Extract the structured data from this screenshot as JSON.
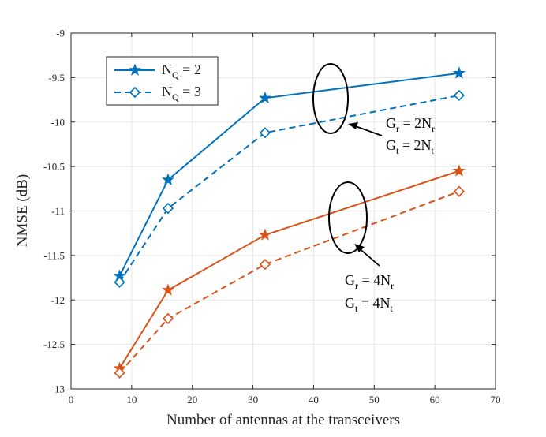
{
  "chart_data": {
    "type": "line",
    "title": "",
    "xlabel": "Number of antennas at the transceivers",
    "ylabel": "NMSE (dB)",
    "xlim": [
      0,
      70
    ],
    "ylim": [
      -13,
      -9
    ],
    "xticks": [
      0,
      10,
      20,
      30,
      40,
      50,
      60,
      70
    ],
    "yticks": [
      -13,
      -12.5,
      -12,
      -11.5,
      -11,
      -10.5,
      -10,
      -9.5,
      -9
    ],
    "xtick_labels": [
      "0",
      "10",
      "20",
      "30",
      "40",
      "50",
      "60",
      "70"
    ],
    "ytick_labels": [
      "-13",
      "-12.5",
      "-12",
      "-11.5",
      "-11",
      "-10.5",
      "-10",
      "-9.5",
      "-9"
    ],
    "grid": true,
    "legend_position": "top-left",
    "series": [
      {
        "name": "N_Q = 2, G_r = 2N_r, G_t = 2N_t",
        "color": "#0072BD",
        "line": "solid",
        "marker": "star",
        "x": [
          8,
          16,
          32,
          64
        ],
        "values": [
          -11.73,
          -10.65,
          -9.73,
          -9.45
        ]
      },
      {
        "name": "N_Q = 3, G_r = 2N_r, G_t = 2N_t",
        "color": "#0072BD",
        "line": "dashed",
        "marker": "diamond",
        "x": [
          8,
          16,
          32,
          64
        ],
        "values": [
          -11.8,
          -10.97,
          -10.12,
          -9.7
        ]
      },
      {
        "name": "N_Q = 2, G_r = 4N_r, G_t = 4N_t",
        "color": "#D95319",
        "line": "solid",
        "marker": "star",
        "x": [
          8,
          16,
          32,
          64
        ],
        "values": [
          -12.77,
          -11.89,
          -11.27,
          -10.55
        ]
      },
      {
        "name": "N_Q = 3, G_r = 4N_r, G_t = 4N_t",
        "color": "#D95319",
        "line": "dashed",
        "marker": "diamond",
        "x": [
          8,
          16,
          32,
          64
        ],
        "values": [
          -12.82,
          -12.21,
          -11.6,
          -10.78
        ]
      }
    ],
    "legend": [
      {
        "main": "N",
        "sub": "Q",
        "rest": " = 2",
        "color": "#0072BD",
        "line": "solid",
        "marker": "star"
      },
      {
        "main": "N",
        "sub": "Q",
        "rest": " = 3",
        "color": "#0072BD",
        "line": "dashed",
        "marker": "diamond"
      }
    ],
    "annotations": [
      {
        "group": "blue",
        "lines": [
          {
            "a": "G",
            "as": "r",
            "b": " = 2N",
            "bs": "r"
          },
          {
            "a": "G",
            "as": "t",
            "b": " = 2N",
            "bs": "t"
          }
        ]
      },
      {
        "group": "orange",
        "lines": [
          {
            "a": "G",
            "as": "r",
            "b": " = 4N",
            "bs": "r"
          },
          {
            "a": "G",
            "as": "t",
            "b": " = 4N",
            "bs": "t"
          }
        ]
      }
    ]
  }
}
